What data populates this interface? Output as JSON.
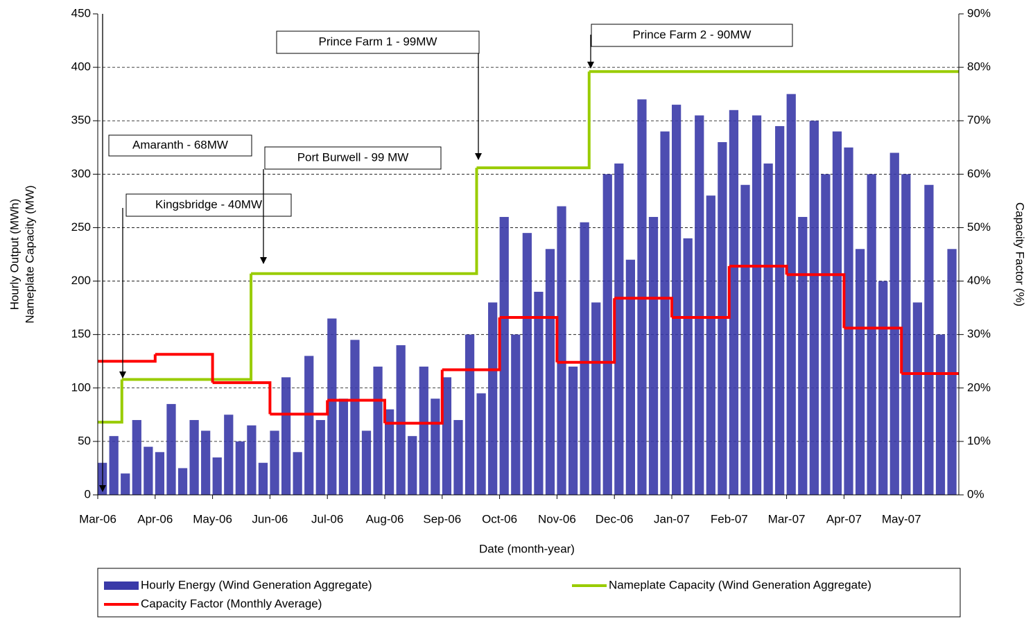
{
  "chart_data": {
    "type": "bar-line",
    "x_label": "Date (month-year)",
    "y_label": [
      "Hourly Output (MWh)",
      "Nameplate Capacity (MW)"
    ],
    "y2_label": "Capacity Factor (%)",
    "xlim": [
      0,
      15
    ],
    "xticks": [
      {
        "value": 0,
        "label": "Mar-06"
      },
      {
        "value": 1,
        "label": "Apr-06"
      },
      {
        "value": 2,
        "label": "May-06"
      },
      {
        "value": 3,
        "label": "Jun-06"
      },
      {
        "value": 4,
        "label": "Jul-06"
      },
      {
        "value": 5,
        "label": "Aug-06"
      },
      {
        "value": 6,
        "label": "Sep-06"
      },
      {
        "value": 7,
        "label": "Oct-06"
      },
      {
        "value": 8,
        "label": "Nov-06"
      },
      {
        "value": 9,
        "label": "Dec-06"
      },
      {
        "value": 10,
        "label": "Jan-07"
      },
      {
        "value": 11,
        "label": "Feb-07"
      },
      {
        "value": 12,
        "label": "Mar-07"
      },
      {
        "value": 13,
        "label": "Apr-07"
      },
      {
        "value": 14,
        "label": "May-07"
      }
    ],
    "ylim": [
      0,
      450
    ],
    "yticks": [
      0,
      50,
      100,
      150,
      200,
      250,
      300,
      350,
      400,
      450
    ],
    "y2lim": [
      0,
      90
    ],
    "y2ticks": [
      {
        "value": 0,
        "label": "0%"
      },
      {
        "value": 10,
        "label": "10%"
      },
      {
        "value": 20,
        "label": "20%"
      },
      {
        "value": 30,
        "label": "30%"
      },
      {
        "value": 40,
        "label": "40%"
      },
      {
        "value": 50,
        "label": "50%"
      },
      {
        "value": 60,
        "label": "60%"
      },
      {
        "value": 70,
        "label": "70%"
      },
      {
        "value": 80,
        "label": "80%"
      },
      {
        "value": 90,
        "label": "90%"
      }
    ],
    "grid": true,
    "legend": "bottom",
    "series": [
      {
        "name": "Hourly Energy (Wind Generation Aggregate)",
        "kind": "bar",
        "color": "#3a3aa8",
        "x": [
          0,
          0.2,
          0.4,
          0.6,
          0.8,
          1,
          1.2,
          1.4,
          1.6,
          1.8,
          2,
          2.2,
          2.4,
          2.6,
          2.8,
          3,
          3.2,
          3.4,
          3.6,
          3.8,
          4,
          4.2,
          4.4,
          4.6,
          4.8,
          5,
          5.2,
          5.4,
          5.6,
          5.8,
          6,
          6.2,
          6.4,
          6.6,
          6.8,
          7,
          7.2,
          7.4,
          7.6,
          7.8,
          8,
          8.2,
          8.4,
          8.6,
          8.8,
          9,
          9.2,
          9.4,
          9.6,
          9.8,
          10,
          10.2,
          10.4,
          10.6,
          10.8,
          11,
          11.2,
          11.4,
          11.6,
          11.8,
          12,
          12.2,
          12.4,
          12.6,
          12.8,
          13,
          13.2,
          13.4,
          13.6,
          13.8,
          14,
          14.2,
          14.4,
          14.6,
          14.8
        ],
        "values": [
          30,
          55,
          20,
          70,
          45,
          40,
          85,
          25,
          70,
          60,
          35,
          75,
          50,
          65,
          30,
          60,
          110,
          40,
          130,
          70,
          165,
          90,
          145,
          60,
          120,
          80,
          140,
          55,
          120,
          90,
          110,
          70,
          150,
          95,
          180,
          260,
          150,
          245,
          190,
          230,
          270,
          120,
          255,
          180,
          300,
          310,
          220,
          370,
          260,
          340,
          365,
          240,
          355,
          280,
          330,
          360,
          290,
          355,
          310,
          345,
          375,
          260,
          350,
          300,
          340,
          325,
          230,
          300,
          200,
          320,
          300,
          180,
          290,
          150,
          230
        ]
      },
      {
        "name": "Nameplate Capacity (Wind Generation Aggregate)",
        "kind": "step",
        "color": "#99cc00",
        "x": [
          0,
          0.42,
          2.67,
          6.6,
          8.56
        ],
        "values": [
          68,
          108,
          207,
          306,
          396
        ]
      },
      {
        "name": "Capacity Factor (Monthly Average)",
        "kind": "step",
        "color": "#ff0000",
        "axis": "y2",
        "x": [
          0,
          1,
          2,
          3,
          4,
          5,
          6,
          7,
          8,
          9,
          10,
          11,
          12,
          13,
          14
        ],
        "values": [
          25,
          26.3,
          21,
          15.1,
          17.7,
          13.4,
          23.4,
          33.2,
          24.8,
          36.8,
          33.2,
          42.8,
          41.2,
          31.2,
          22.7
        ]
      }
    ],
    "annotations": [
      {
        "text": "Amaranth - 68MW"
      },
      {
        "text": "Kingsbridge - 40MW"
      },
      {
        "text": "Port Burwell - 99 MW"
      },
      {
        "text": "Prince Farm 1 - 99MW"
      },
      {
        "text": "Prince Farm 2 - 90MW"
      }
    ]
  }
}
